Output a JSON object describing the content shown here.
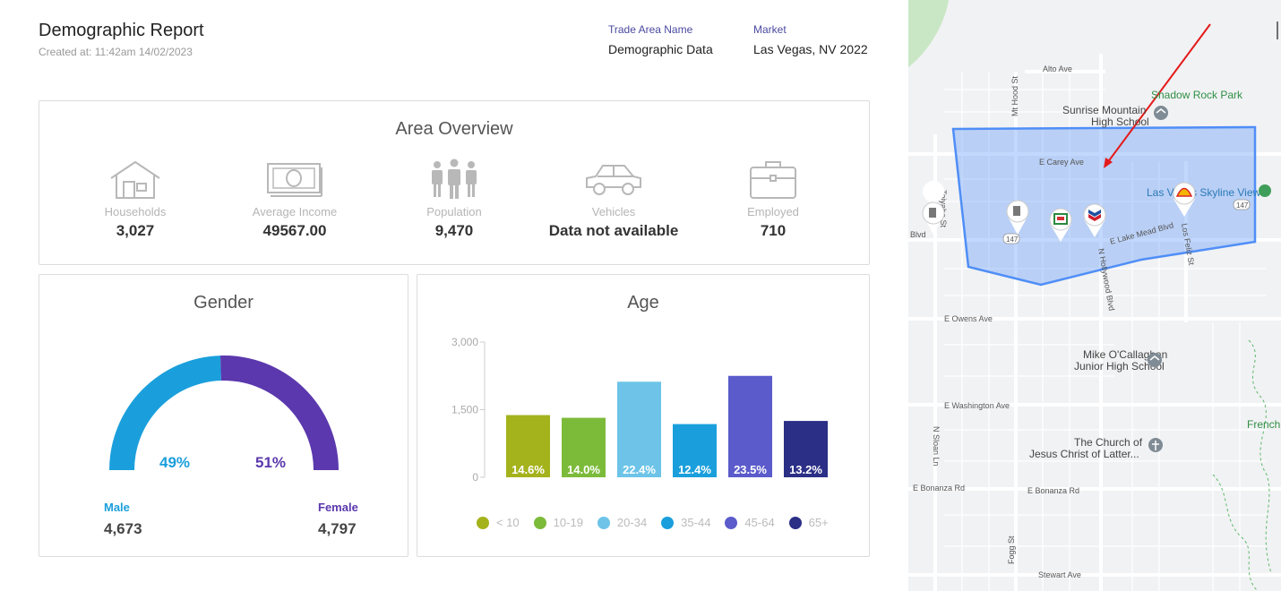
{
  "header": {
    "title": "Demographic Report",
    "created": "Created at: 11:42am 14/02/2023",
    "trade_area_label": "Trade Area Name",
    "trade_area_value": "Demographic Data",
    "market_label": "Market",
    "market_value": "Las Vegas, NV 2022"
  },
  "overview": {
    "title": "Area Overview",
    "items": [
      {
        "icon": "house-icon",
        "label": "Households",
        "value": "3,027"
      },
      {
        "icon": "money-icon",
        "label": "Average Income",
        "value": "49567.00"
      },
      {
        "icon": "people-icon",
        "label": "Population",
        "value": "9,470"
      },
      {
        "icon": "car-icon",
        "label": "Vehicles",
        "value": "Data not available"
      },
      {
        "icon": "briefcase-icon",
        "label": "Employed",
        "value": "710"
      }
    ]
  },
  "gender": {
    "title": "Gender",
    "male_pct_label": "49%",
    "female_pct_label": "51%",
    "male_label": "Male",
    "female_label": "Female",
    "male_count": "4,673",
    "female_count": "4,797",
    "male_fraction": 0.49,
    "male_color": "#1a9fdc",
    "female_color": "#5b38ad"
  },
  "chart_data": {
    "type": "bar",
    "title": "Age",
    "categories": [
      "< 10",
      "10-19",
      "20-34",
      "35-44",
      "45-64",
      "65+"
    ],
    "values": [
      1380,
      1320,
      2120,
      1180,
      2250,
      1250
    ],
    "data_labels": [
      "14.6%",
      "14.0%",
      "22.4%",
      "12.4%",
      "23.5%",
      "13.2%"
    ],
    "colors": [
      "#a4b31c",
      "#7cbb3a",
      "#6dc4e8",
      "#1a9fdc",
      "#5b5bcc",
      "#2b2f86"
    ],
    "yticks": [
      "3,000",
      "1,500",
      "0"
    ],
    "ylim": [
      0,
      3000
    ],
    "legend_position": "bottom"
  },
  "map": {
    "streets": [
      "Alto Ave",
      "Mt Hood St",
      "E Carey Ave",
      "E Lake Mead Blvd",
      "N Hollywood Blvd",
      "Los Feliz St",
      "E Owens Ave",
      "E Washington Ave",
      "N Sloan Ln",
      "E Bonanza Rd",
      "Stewart Ave",
      "Fogg St",
      "Toiyabe St",
      "Blvd"
    ],
    "pois": [
      "Shadow Rock Park",
      "Sunrise Mountain High School",
      "Las Vegas Skyline View",
      "Mike O'Callaghan Junior High School",
      "The Church of Jesus Christ of Latter...",
      "French"
    ],
    "route_number": "147",
    "polygon_color": "#4f8ef7"
  }
}
